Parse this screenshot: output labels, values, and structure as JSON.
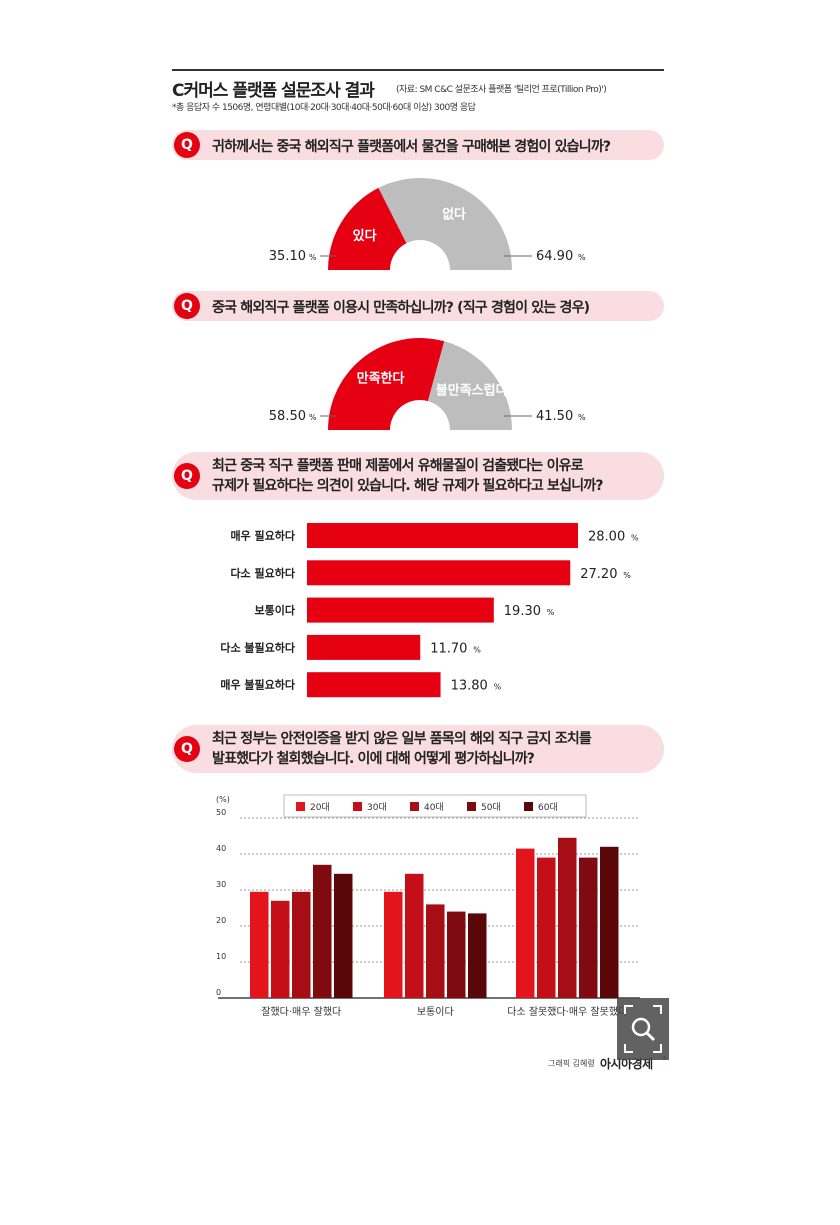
{
  "header": {
    "title": "C커머스 플랫폼 설문조사 결과",
    "source": "(자료: SM C&C 설문조사 플랫폼 '틸리언 프로(Tillion Pro)')",
    "note": "*총 응답자 수 1506명, 연령대별(10대·20대·30대·40대·50대·60대 이상) 300명 응답"
  },
  "questions": {
    "q1": {
      "icon": "Q",
      "text": "귀하께서는 중국 해외직구 플랫폼에서 물건을 구매해본 경험이 있습니까?"
    },
    "q2": {
      "icon": "Q",
      "text": "중국 해외직구 플랫폼 이용시 만족하십니까? (직구 경험이 있는 경우)"
    },
    "q3": {
      "icon": "Q",
      "line1": "최근 중국 직구 플랫폼 판매 제품에서 유해물질이 검출됐다는 이유로",
      "line2": "규제가 필요하다는 의견이 있습니다. 해당 규제가 필요하다고 보십니까?"
    },
    "q4": {
      "icon": "Q",
      "line1": "최근 정부는 안전인증을 받지 않은 일부 품목의 해외 직구 금지 조치를",
      "line2": "발표했다가 철회했습니다. 이에 대해 어떻게 평가하십니까?"
    }
  },
  "colors": {
    "accent": "#e50012",
    "gray": "#bdbdbd",
    "pill": "#f9dde0"
  },
  "chart_data": [
    {
      "type": "pie",
      "shape": "half-donut",
      "labels": [
        "있다",
        "없다"
      ],
      "values": [
        35.1,
        64.9
      ],
      "value_labels": [
        "35.10",
        "64.90"
      ],
      "unit": "%",
      "colors": [
        "#e50012",
        "#bdbdbd"
      ]
    },
    {
      "type": "pie",
      "shape": "half-donut",
      "labels": [
        "만족한다",
        "불만족스럽다"
      ],
      "values": [
        58.5,
        41.5
      ],
      "value_labels": [
        "58.50",
        "41.50"
      ],
      "unit": "%",
      "colors": [
        "#e50012",
        "#bdbdbd"
      ]
    },
    {
      "type": "bar",
      "orientation": "horizontal",
      "categories": [
        "매우 필요하다",
        "다소 필요하다",
        "보통이다",
        "다소 불필요하다",
        "매우 불필요하다"
      ],
      "values": [
        28.0,
        27.2,
        19.3,
        11.7,
        13.8
      ],
      "value_labels": [
        "28.00",
        "27.20",
        "19.30",
        "11.70",
        "13.80"
      ],
      "unit": "%",
      "color": "#e50012"
    },
    {
      "type": "bar",
      "categories": [
        "잘했다·매우 잘했다",
        "보통이다",
        "다소 잘못했다·매우 잘못했다"
      ],
      "series": [
        {
          "name": "20대",
          "values": [
            29.5,
            29.5,
            41.5
          ],
          "color": "#e3141c"
        },
        {
          "name": "30대",
          "values": [
            27.0,
            34.5,
            39.0
          ],
          "color": "#c50f18"
        },
        {
          "name": "40대",
          "values": [
            29.5,
            26.0,
            44.5
          ],
          "color": "#a60d15"
        },
        {
          "name": "50대",
          "values": [
            37.0,
            24.0,
            39.0
          ],
          "color": "#7f0b10"
        },
        {
          "name": "60대",
          "values": [
            34.5,
            23.5,
            42.0
          ],
          "color": "#5a070a"
        }
      ],
      "ylabel": "(%)",
      "ylim": [
        0,
        50
      ],
      "yticks": [
        "0",
        "10",
        "20",
        "30",
        "40",
        "50"
      ],
      "grid": true,
      "legend_placement": "top"
    }
  ],
  "footer": {
    "credit": "그래픽 김혜령",
    "brand": "아시아경제",
    "brand_mark": "*"
  },
  "overlay": {
    "icon": "zoom-icon"
  }
}
